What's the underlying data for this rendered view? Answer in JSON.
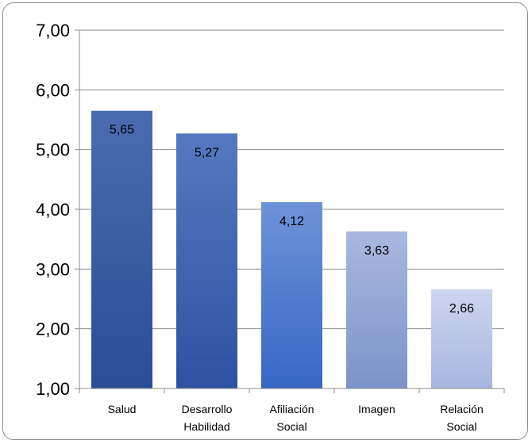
{
  "chart_data": {
    "type": "bar",
    "categories": [
      [
        "Salud"
      ],
      [
        "Desarrollo",
        "Habilidad"
      ],
      [
        "Afiliación",
        "Social"
      ],
      [
        "Imagen"
      ],
      [
        "Relación",
        "Social"
      ]
    ],
    "values": [
      5.65,
      5.27,
      4.12,
      3.63,
      2.66
    ],
    "data_labels": [
      "5,65",
      "5,27",
      "4,12",
      "3,63",
      "2,66"
    ],
    "ylim": [
      1,
      7
    ],
    "yticks": [
      "1,00",
      "2,00",
      "3,00",
      "4,00",
      "5,00",
      "6,00",
      "7,00"
    ],
    "grid": true,
    "legend": "none",
    "bar_colors": [
      [
        "#2b4d96",
        "#4b6bb0"
      ],
      [
        "#2e52a2",
        "#5479c0"
      ],
      [
        "#3866c4",
        "#6d93d8"
      ],
      [
        "#7d93c8",
        "#a9b8e0"
      ],
      [
        "#a8b5e0",
        "#cdd5ef"
      ]
    ]
  }
}
